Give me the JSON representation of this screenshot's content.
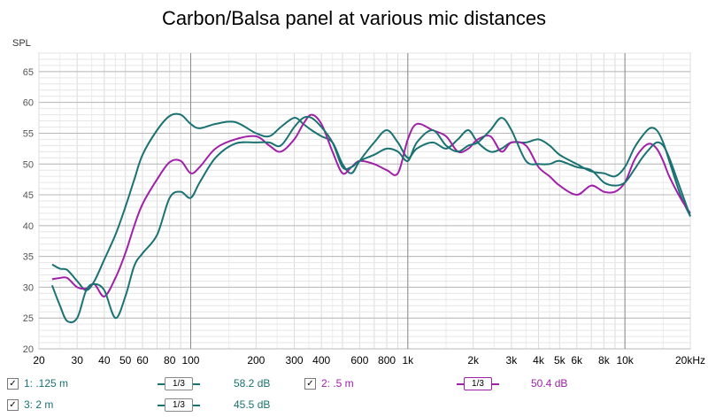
{
  "chart_data": {
    "type": "line",
    "title": "Carbon/Balsa panel at various mic distances",
    "ylabel": "SPL",
    "xscale": "log",
    "xlim": [
      20,
      20000
    ],
    "ylim": [
      20,
      68
    ],
    "x_ticks": [
      20,
      30,
      40,
      50,
      60,
      80,
      100,
      200,
      300,
      400,
      600,
      800,
      1000,
      2000,
      3000,
      4000,
      5000,
      6000,
      8000,
      10000,
      20000
    ],
    "x_tick_labels": [
      "20",
      "30",
      "40",
      "50",
      "60",
      "80",
      "100",
      "200",
      "300",
      "400",
      "600",
      "800",
      "1k",
      "2k",
      "3k",
      "4k",
      "5k",
      "6k",
      "8k",
      "10k",
      "20kHz"
    ],
    "y_ticks": [
      20,
      25,
      30,
      35,
      40,
      45,
      50,
      55,
      60,
      65
    ],
    "grid": true,
    "series": [
      {
        "name": "1: .125 m",
        "color": "#1b7272",
        "x": [
          23,
          25,
          27,
          30,
          33,
          36,
          40,
          45,
          50,
          55,
          60,
          70,
          80,
          90,
          100,
          110,
          130,
          160,
          200,
          230,
          260,
          300,
          330,
          360,
          400,
          450,
          500,
          550,
          600,
          700,
          800,
          900,
          1000,
          1100,
          1300,
          1500,
          1700,
          1900,
          2100,
          2400,
          2700,
          3000,
          3500,
          4000,
          4500,
          5000,
          6000,
          7000,
          8000,
          9000,
          10000,
          11000,
          12000,
          13000,
          14000,
          15000,
          16000,
          18000,
          20000
        ],
        "y": [
          33.7,
          33.0,
          32.8,
          31.0,
          29.5,
          31.0,
          34.5,
          38.5,
          43.0,
          47.5,
          51.5,
          55.5,
          57.8,
          58.0,
          56.5,
          55.8,
          56.5,
          56.8,
          55.0,
          54.5,
          56.0,
          57.5,
          56.5,
          55.5,
          54.5,
          53.5,
          50.0,
          48.5,
          50.5,
          53.5,
          55.5,
          53.5,
          51.0,
          52.5,
          53.5,
          52.5,
          54.0,
          55.5,
          53.5,
          52.0,
          52.5,
          53.5,
          53.5,
          54.0,
          53.0,
          51.5,
          50.0,
          48.8,
          48.5,
          48.0,
          49.5,
          52.5,
          54.5,
          55.8,
          55.5,
          53.5,
          50.5,
          45.0,
          41.5
        ]
      },
      {
        "name": "2: .5 m",
        "color": "#a020a8",
        "x": [
          23,
          25,
          27,
          30,
          33,
          36,
          40,
          45,
          50,
          55,
          60,
          70,
          80,
          90,
          100,
          110,
          130,
          160,
          200,
          230,
          260,
          300,
          330,
          360,
          400,
          450,
          500,
          550,
          600,
          700,
          800,
          900,
          1000,
          1100,
          1300,
          1500,
          1700,
          1900,
          2100,
          2400,
          2700,
          3000,
          3500,
          4000,
          4500,
          5000,
          6000,
          7000,
          8000,
          9000,
          10000,
          11000,
          12000,
          13000,
          14000,
          15000,
          16000,
          18000,
          20000
        ],
        "y": [
          31.3,
          31.5,
          31.5,
          30.0,
          29.8,
          30.5,
          28.5,
          31.5,
          35.5,
          40.0,
          43.5,
          47.5,
          50.3,
          50.5,
          48.5,
          49.5,
          52.5,
          54.0,
          54.5,
          53.0,
          52.0,
          54.0,
          56.5,
          58.0,
          56.5,
          52.0,
          48.5,
          49.5,
          50.5,
          50.0,
          49.0,
          48.5,
          54.0,
          56.5,
          55.5,
          54.5,
          52.0,
          52.5,
          54.0,
          54.5,
          52.0,
          53.5,
          53.0,
          49.5,
          48.0,
          46.5,
          45.0,
          46.5,
          45.5,
          45.5,
          47.0,
          50.5,
          52.5,
          53.3,
          52.5,
          50.5,
          48.0,
          44.5,
          42.0
        ]
      },
      {
        "name": "3: 2 m",
        "color": "#1b7272",
        "x": [
          23,
          25,
          27,
          30,
          33,
          36,
          40,
          45,
          50,
          55,
          60,
          70,
          80,
          90,
          100,
          110,
          130,
          160,
          200,
          230,
          260,
          300,
          330,
          360,
          400,
          450,
          500,
          550,
          600,
          700,
          800,
          900,
          1000,
          1100,
          1300,
          1500,
          1700,
          1900,
          2100,
          2400,
          2700,
          3000,
          3500,
          4000,
          4500,
          5000,
          6000,
          7000,
          8000,
          9000,
          10000,
          11000,
          12000,
          13000,
          14000,
          15000,
          16000,
          18000,
          20000
        ],
        "y": [
          30.3,
          27.0,
          24.5,
          25.0,
          29.5,
          30.5,
          29.5,
          25.0,
          28.5,
          33.5,
          35.5,
          38.5,
          44.5,
          45.5,
          44.5,
          47.0,
          51.0,
          53.3,
          53.5,
          53.5,
          53.0,
          56.0,
          57.5,
          57.5,
          56.0,
          53.5,
          49.5,
          49.5,
          50.5,
          51.5,
          52.5,
          52.0,
          50.5,
          53.5,
          55.5,
          53.0,
          52.0,
          53.0,
          53.5,
          55.5,
          57.5,
          55.5,
          50.5,
          50.0,
          50.0,
          50.5,
          49.5,
          49.0,
          47.0,
          46.5,
          47.0,
          49.0,
          51.0,
          52.5,
          53.5,
          53.0,
          51.0,
          46.0,
          41.5
        ]
      }
    ]
  },
  "legend": [
    {
      "checked": "✓",
      "label": "1: .125 m",
      "smoothing": "1/3",
      "value": "58.2 dB",
      "color": "#1b7272"
    },
    {
      "checked": "✓",
      "label": "2: .5 m",
      "smoothing": "1/3",
      "value": "50.4 dB",
      "color": "#a020a8"
    },
    {
      "checked": "✓",
      "label": "3: 2 m",
      "smoothing": "1/3",
      "value": "45.5 dB",
      "color": "#1b7272"
    }
  ]
}
